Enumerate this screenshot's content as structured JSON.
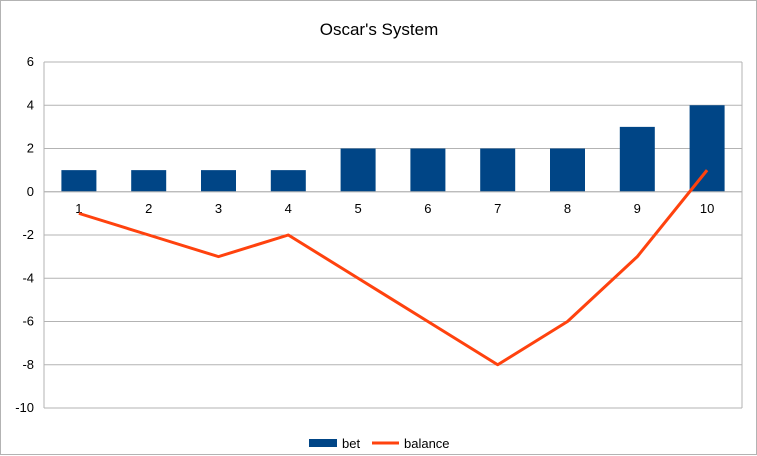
{
  "chart_data": {
    "type": "bar",
    "title": "Oscar's System",
    "xlabel": "",
    "ylabel": "",
    "categories": [
      "1",
      "2",
      "3",
      "4",
      "5",
      "6",
      "7",
      "8",
      "9",
      "10"
    ],
    "ylim": [
      -10,
      6
    ],
    "yticks": [
      6,
      4,
      2,
      0,
      -2,
      -4,
      -6,
      -8,
      -10
    ],
    "grid": true,
    "legend_position": "bottom",
    "series": [
      {
        "name": "bet",
        "kind": "bar",
        "color": "#004586",
        "values": [
          1,
          1,
          1,
          1,
          2,
          2,
          2,
          2,
          3,
          4
        ]
      },
      {
        "name": "balance",
        "kind": "line",
        "color": "#ff420e",
        "values": [
          -1,
          -2,
          -3,
          -2,
          -4,
          -6,
          -8,
          -6,
          -3,
          1
        ]
      }
    ]
  }
}
